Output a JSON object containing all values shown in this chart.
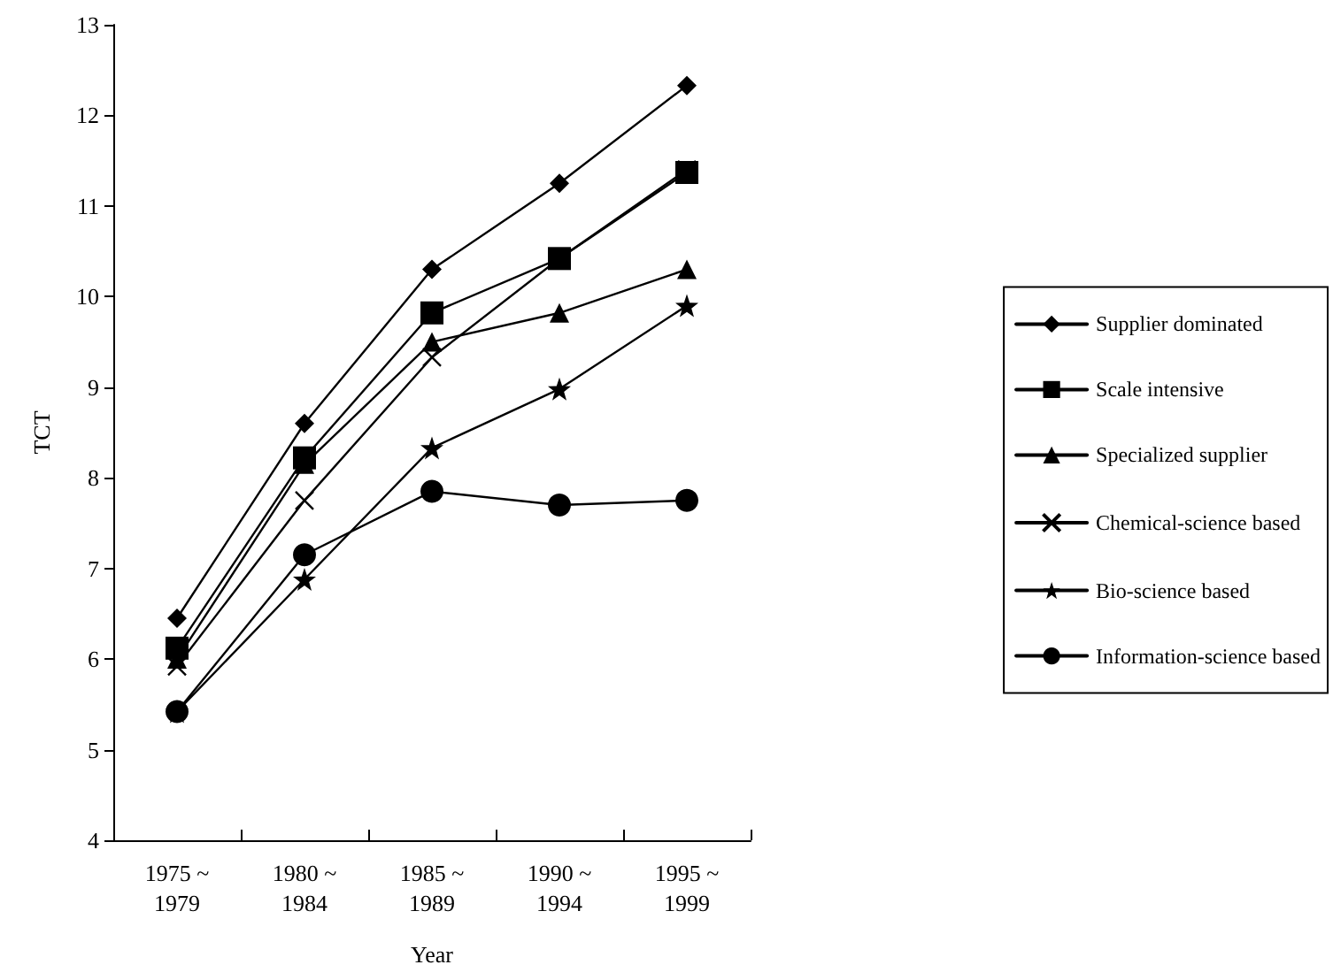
{
  "chart_data": {
    "type": "line",
    "xlabel": "Year",
    "ylabel": "TCT",
    "categories": [
      "1975 ~ 1979",
      "1980 ~ 1984",
      "1985 ~ 1989",
      "1990 ~ 1994",
      "1995 ~ 1999"
    ],
    "series": [
      {
        "name": "Supplier dominated",
        "color": "#000000",
        "marker": "diamond",
        "values": [
          6.45,
          8.6,
          10.3,
          11.25,
          12.33
        ]
      },
      {
        "name": "Scale intensive",
        "color": "#000000",
        "marker": "square",
        "values": [
          6.12,
          8.22,
          9.82,
          10.42,
          11.37
        ]
      },
      {
        "name": "Specialized supplier",
        "color": "#000000",
        "marker": "triangle",
        "values": [
          6.0,
          8.15,
          9.5,
          9.82,
          10.3
        ]
      },
      {
        "name": "Chemical-science based",
        "color": "#000000",
        "marker": "cross",
        "values": [
          5.92,
          7.75,
          9.33,
          10.42,
          11.4
        ]
      },
      {
        "name": "Bio-science based",
        "color": "#000000",
        "marker": "star",
        "values": [
          5.42,
          6.88,
          8.33,
          8.98,
          9.9
        ]
      },
      {
        "name": "Information-science based",
        "color": "#000000",
        "marker": "circle",
        "values": [
          5.42,
          7.15,
          7.85,
          7.7,
          7.75
        ]
      }
    ],
    "ylim": [
      4,
      13
    ],
    "yticks": [
      4,
      5,
      6,
      7,
      8,
      9,
      10,
      11,
      12,
      13
    ],
    "grid": false,
    "legend": "right",
    "line_style": "solid"
  }
}
